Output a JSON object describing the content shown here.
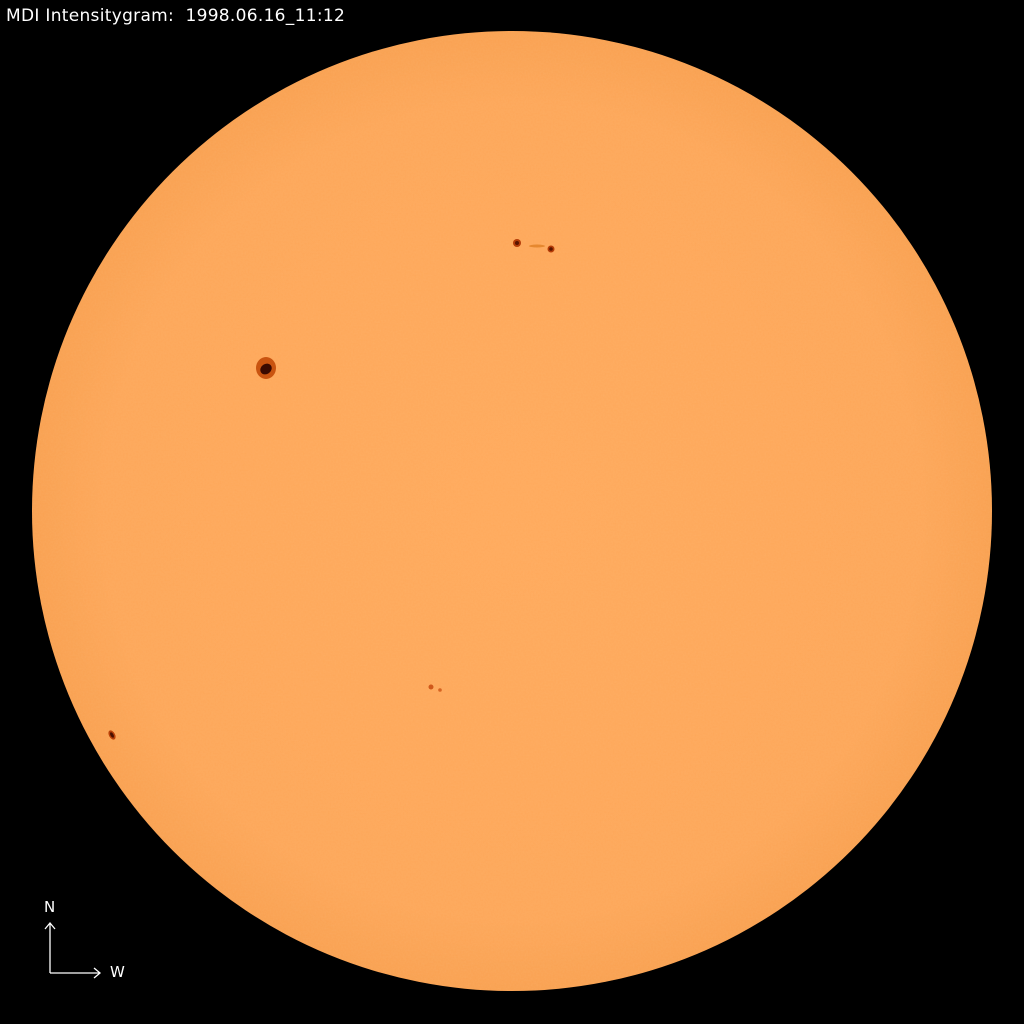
{
  "title": "MDI Intensitygram:  1998.06.16_11:12",
  "compass": {
    "north_label": "N",
    "west_label": "W"
  },
  "colors": {
    "background": "#000000",
    "disk": "#FDA658",
    "umbra": "#3a0a00",
    "penumbra": "#c64f10",
    "text": "#ffffff"
  }
}
